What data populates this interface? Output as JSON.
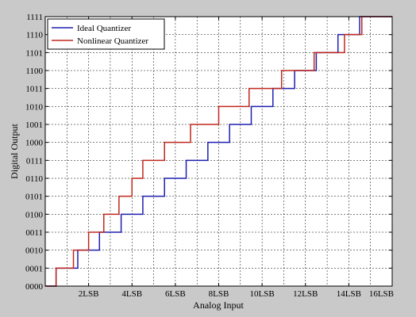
{
  "chart_data": {
    "type": "line",
    "step": true,
    "title": "",
    "xlabel": "Analog Input",
    "ylabel": "Digital Output",
    "xlim": [
      0,
      16
    ],
    "ylim": [
      0,
      15
    ],
    "grid": true,
    "legend_position": "top-left",
    "x_tick_values": [
      0,
      2,
      4,
      6,
      8,
      10,
      12,
      14,
      16
    ],
    "x_tick_labels": [
      "",
      "2LSB",
      "4LSB",
      "6LSB",
      "8LSB",
      "10LSB",
      "12LSB",
      "14LSB",
      "16LSB"
    ],
    "y_tick_labels": [
      "0000",
      "0001",
      "0010",
      "0011",
      "0100",
      "0101",
      "0110",
      "0111",
      "1000",
      "1001",
      "1010",
      "1011",
      "1100",
      "1101",
      "1110",
      "1111"
    ],
    "series": [
      {
        "name": "Ideal Quantizer",
        "color": "#1f1fb0",
        "x": [
          0,
          0.5,
          0.5,
          1.5,
          1.5,
          2.5,
          2.5,
          3.5,
          3.5,
          4.5,
          4.5,
          5.5,
          5.5,
          6.5,
          6.5,
          7.5,
          7.5,
          8.5,
          8.5,
          9.5,
          9.5,
          10.5,
          10.5,
          11.5,
          11.5,
          12.5,
          12.5,
          13.5,
          13.5,
          14.5,
          14.5,
          16
        ],
        "y": [
          0,
          0,
          1,
          1,
          2,
          2,
          3,
          3,
          4,
          4,
          5,
          5,
          6,
          6,
          7,
          7,
          8,
          8,
          9,
          9,
          10,
          10,
          11,
          11,
          12,
          12,
          13,
          13,
          14,
          14,
          15,
          15
        ]
      },
      {
        "name": "Nonlinear Quantizer",
        "color": "#c0281e",
        "x": [
          0,
          0.5,
          0.5,
          1.3,
          1.3,
          2.0,
          2.0,
          2.7,
          2.7,
          3.4,
          3.4,
          4.0,
          4.0,
          4.5,
          4.5,
          5.5,
          5.5,
          6.7,
          6.7,
          8.0,
          8.0,
          9.4,
          9.4,
          10.9,
          10.9,
          12.4,
          12.4,
          13.8,
          13.8,
          14.6,
          14.6,
          16
        ],
        "y": [
          0,
          0,
          1,
          1,
          2,
          2,
          3,
          3,
          4,
          4,
          5,
          5,
          6,
          6,
          7,
          7,
          8,
          8,
          9,
          9,
          10,
          10,
          11,
          11,
          12,
          12,
          13,
          13,
          14,
          14,
          15,
          15
        ]
      }
    ]
  }
}
